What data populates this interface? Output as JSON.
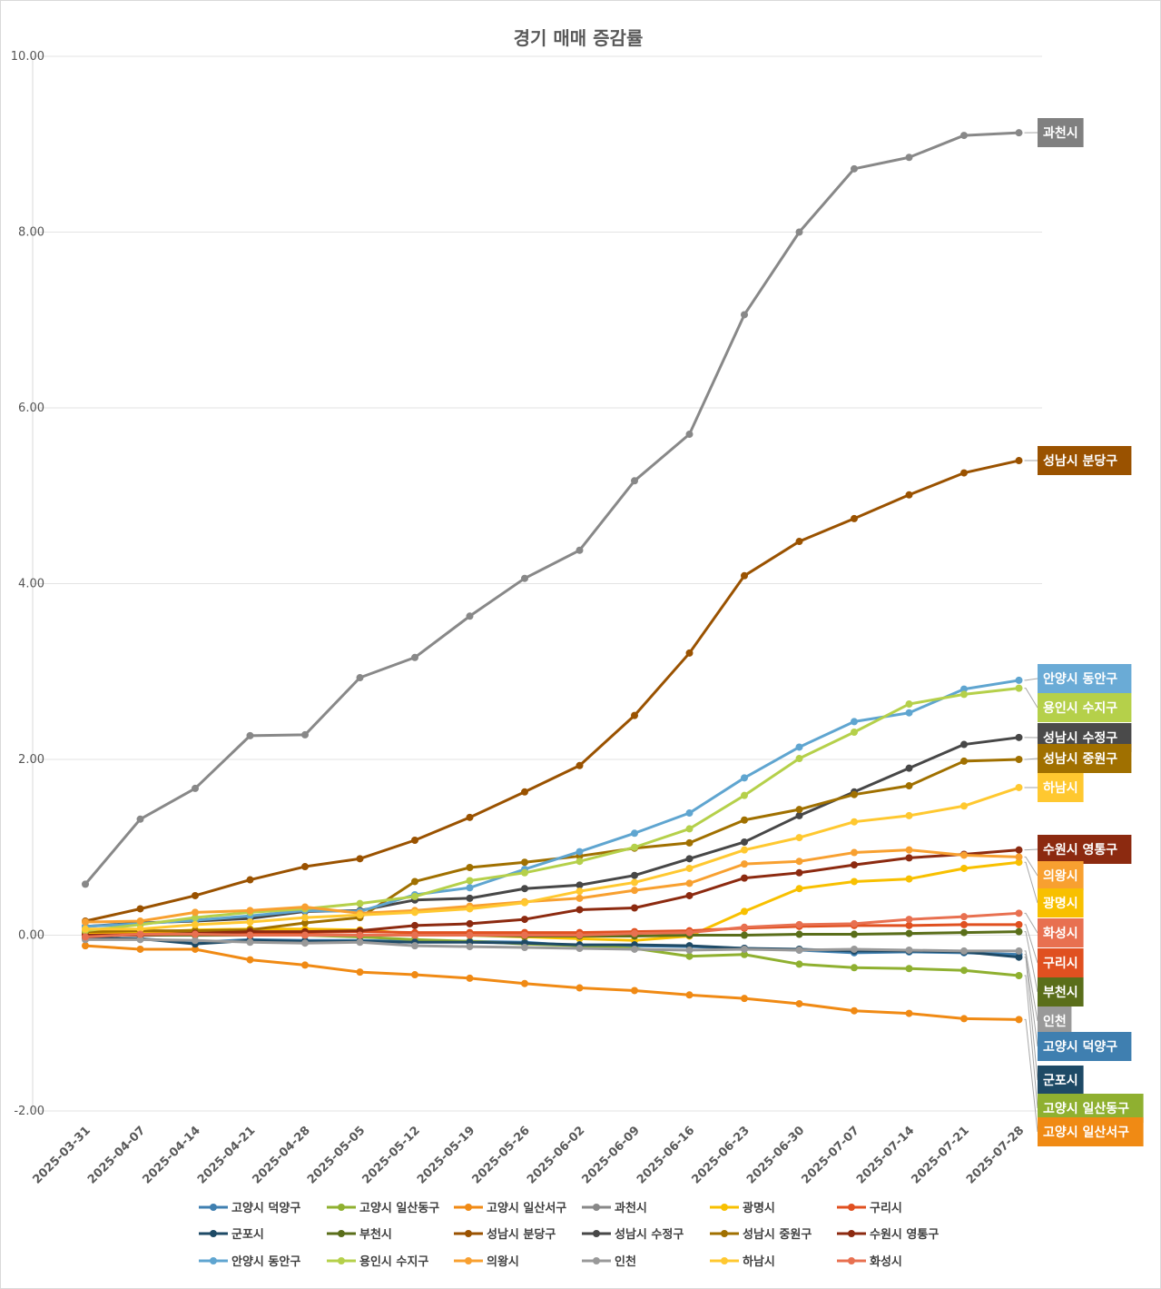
{
  "chart_data": {
    "type": "line",
    "title": "경기 매매 증감률",
    "xlabel": "",
    "ylabel": "",
    "ylim": [
      -2,
      10
    ],
    "yticks": [
      "10.00",
      "8.00",
      "6.00",
      "4.00",
      "2.00",
      "0.00",
      "-2.00"
    ],
    "ytick_values": [
      10,
      8,
      6,
      4,
      2,
      0,
      -2
    ],
    "grid": true,
    "legend_position": "bottom",
    "categories": [
      "2025-03-31",
      "2025-04-07",
      "2025-04-14",
      "2025-04-21",
      "2025-04-28",
      "2025-05-05",
      "2025-05-12",
      "2025-05-19",
      "2025-05-26",
      "2025-06-02",
      "2025-06-09",
      "2025-06-16",
      "2025-06-23",
      "2025-06-30",
      "2025-07-07",
      "2025-07-14",
      "2025-07-21",
      "2025-07-28"
    ],
    "series": [
      {
        "name": "고양시 덕양구",
        "color": "#3f7fb0",
        "values": [
          -0.03,
          -0.04,
          -0.08,
          -0.05,
          -0.06,
          -0.06,
          -0.07,
          -0.07,
          -0.08,
          -0.12,
          -0.12,
          -0.13,
          -0.15,
          -0.17,
          -0.2,
          -0.19,
          -0.2,
          -0.22
        ]
      },
      {
        "name": "고양시 일산동구",
        "color": "#8fb030",
        "values": [
          0.03,
          0.03,
          0.02,
          0.01,
          0.0,
          -0.02,
          -0.05,
          -0.07,
          -0.1,
          -0.12,
          -0.15,
          -0.24,
          -0.22,
          -0.33,
          -0.37,
          -0.38,
          -0.4,
          -0.46
        ]
      },
      {
        "name": "고양시 일산서구",
        "color": "#f08a14",
        "values": [
          -0.12,
          -0.16,
          -0.16,
          -0.28,
          -0.34,
          -0.42,
          -0.45,
          -0.49,
          -0.55,
          -0.6,
          -0.63,
          -0.68,
          -0.72,
          -0.78,
          -0.86,
          -0.89,
          -0.95,
          -0.96
        ]
      },
      {
        "name": "과천시",
        "color": "#888888",
        "values": [
          0.58,
          1.32,
          1.67,
          2.27,
          2.28,
          2.93,
          3.16,
          3.63,
          4.06,
          4.38,
          5.17,
          5.7,
          7.06,
          8.0,
          8.72,
          8.85,
          9.1,
          9.13
        ]
      },
      {
        "name": "광명시",
        "color": "#f8c000",
        "values": [
          0.03,
          0.03,
          0.06,
          0.07,
          0.07,
          0.06,
          0.02,
          0.0,
          -0.02,
          -0.04,
          -0.06,
          -0.01,
          0.27,
          0.53,
          0.61,
          0.64,
          0.76,
          0.83
        ]
      },
      {
        "name": "구리시",
        "color": "#e05020",
        "values": [
          0.0,
          0.01,
          0.02,
          0.03,
          0.03,
          0.04,
          0.03,
          0.03,
          0.03,
          0.03,
          0.04,
          0.05,
          0.08,
          0.1,
          0.11,
          0.11,
          0.12,
          0.12
        ]
      },
      {
        "name": "군포시",
        "color": "#1e4a66",
        "values": [
          -0.03,
          -0.04,
          -0.1,
          -0.06,
          -0.07,
          -0.07,
          -0.08,
          -0.08,
          -0.09,
          -0.11,
          -0.11,
          -0.12,
          -0.15,
          -0.16,
          -0.18,
          -0.18,
          -0.19,
          -0.25
        ]
      },
      {
        "name": "부천시",
        "color": "#5a6e1a",
        "values": [
          0.0,
          0.0,
          0.0,
          0.0,
          0.0,
          0.0,
          0.0,
          0.0,
          -0.01,
          -0.01,
          -0.01,
          0.0,
          0.0,
          0.01,
          0.01,
          0.02,
          0.03,
          0.04
        ]
      },
      {
        "name": "성남시 분당구",
        "color": "#9a5200",
        "values": [
          0.16,
          0.3,
          0.45,
          0.63,
          0.78,
          0.87,
          1.08,
          1.34,
          1.63,
          1.93,
          2.5,
          3.21,
          4.09,
          4.48,
          4.74,
          5.01,
          5.26,
          5.4
        ]
      },
      {
        "name": "성남시 수정구",
        "color": "#474747",
        "values": [
          0.1,
          0.14,
          0.16,
          0.19,
          0.27,
          0.28,
          0.4,
          0.42,
          0.53,
          0.57,
          0.68,
          0.87,
          1.06,
          1.36,
          1.63,
          1.9,
          2.17,
          2.25
        ]
      },
      {
        "name": "성남시 중원구",
        "color": "#a07000",
        "values": [
          0.04,
          0.05,
          0.05,
          0.06,
          0.14,
          0.2,
          0.61,
          0.77,
          0.83,
          0.9,
          0.99,
          1.05,
          1.31,
          1.43,
          1.6,
          1.7,
          1.98,
          2.0
        ]
      },
      {
        "name": "수원시 영통구",
        "color": "#8c2a10",
        "values": [
          0.0,
          0.0,
          0.02,
          0.04,
          0.04,
          0.05,
          0.11,
          0.13,
          0.18,
          0.29,
          0.31,
          0.45,
          0.65,
          0.71,
          0.8,
          0.88,
          0.92,
          0.97
        ]
      },
      {
        "name": "안양시 동안구",
        "color": "#5fa5d0",
        "values": [
          0.1,
          0.13,
          0.17,
          0.22,
          0.28,
          0.27,
          0.46,
          0.54,
          0.75,
          0.95,
          1.16,
          1.39,
          1.79,
          2.14,
          2.43,
          2.53,
          2.8,
          2.9
        ]
      },
      {
        "name": "용인시 수지구",
        "color": "#b5d04a",
        "values": [
          0.05,
          0.12,
          0.2,
          0.26,
          0.3,
          0.36,
          0.44,
          0.62,
          0.71,
          0.84,
          1.0,
          1.21,
          1.59,
          2.01,
          2.31,
          2.63,
          2.74,
          2.81
        ]
      },
      {
        "name": "의왕시",
        "color": "#f8a030",
        "values": [
          0.15,
          0.16,
          0.26,
          0.28,
          0.32,
          0.25,
          0.28,
          0.33,
          0.38,
          0.42,
          0.51,
          0.59,
          0.81,
          0.84,
          0.94,
          0.97,
          0.91,
          0.89
        ]
      },
      {
        "name": "인천",
        "color": "#999999",
        "values": [
          -0.05,
          -0.05,
          -0.06,
          -0.08,
          -0.09,
          -0.08,
          -0.12,
          -0.13,
          -0.14,
          -0.15,
          -0.16,
          -0.17,
          -0.16,
          -0.17,
          -0.16,
          -0.17,
          -0.18,
          -0.18
        ]
      },
      {
        "name": "하남시",
        "color": "#ffc830",
        "values": [
          0.07,
          0.07,
          0.12,
          0.15,
          0.2,
          0.23,
          0.26,
          0.3,
          0.37,
          0.5,
          0.6,
          0.76,
          0.97,
          1.11,
          1.29,
          1.36,
          1.47,
          1.68
        ]
      },
      {
        "name": "화성시",
        "color": "#e87050",
        "values": [
          -0.02,
          0.01,
          0.01,
          0.0,
          0.0,
          0.0,
          0.0,
          0.0,
          0.0,
          0.0,
          0.02,
          0.03,
          0.09,
          0.12,
          0.13,
          0.18,
          0.21,
          0.25
        ]
      }
    ],
    "end_labels": [
      {
        "name": "과천시",
        "color": "#808080"
      },
      {
        "name": "성남시 분당구",
        "color": "#9a5200"
      },
      {
        "name": "안양시 동안구",
        "color": "#6aabd6"
      },
      {
        "name": "용인시 수지구",
        "color": "#b5d04a"
      },
      {
        "name": "성남시 수정구",
        "color": "#4a4a4a"
      },
      {
        "name": "성남시 중원구",
        "color": "#a07000"
      },
      {
        "name": "하남시",
        "color": "#ffc830"
      },
      {
        "name": "수원시 영통구",
        "color": "#8c2a10"
      },
      {
        "name": "의왕시",
        "color": "#f8a030"
      },
      {
        "name": "광명시",
        "color": "#f8c000"
      },
      {
        "name": "화성시",
        "color": "#e87050"
      },
      {
        "name": "구리시",
        "color": "#e05020"
      },
      {
        "name": "부천시",
        "color": "#5a6e1a"
      },
      {
        "name": "인천",
        "color": "#999999"
      },
      {
        "name": "고양시 덕양구",
        "color": "#3f7fb0"
      },
      {
        "name": "군포시",
        "color": "#1e4a66"
      },
      {
        "name": "고양시 일산동구",
        "color": "#8fb030"
      },
      {
        "name": "고양시 일산서구",
        "color": "#f08a14"
      }
    ]
  }
}
